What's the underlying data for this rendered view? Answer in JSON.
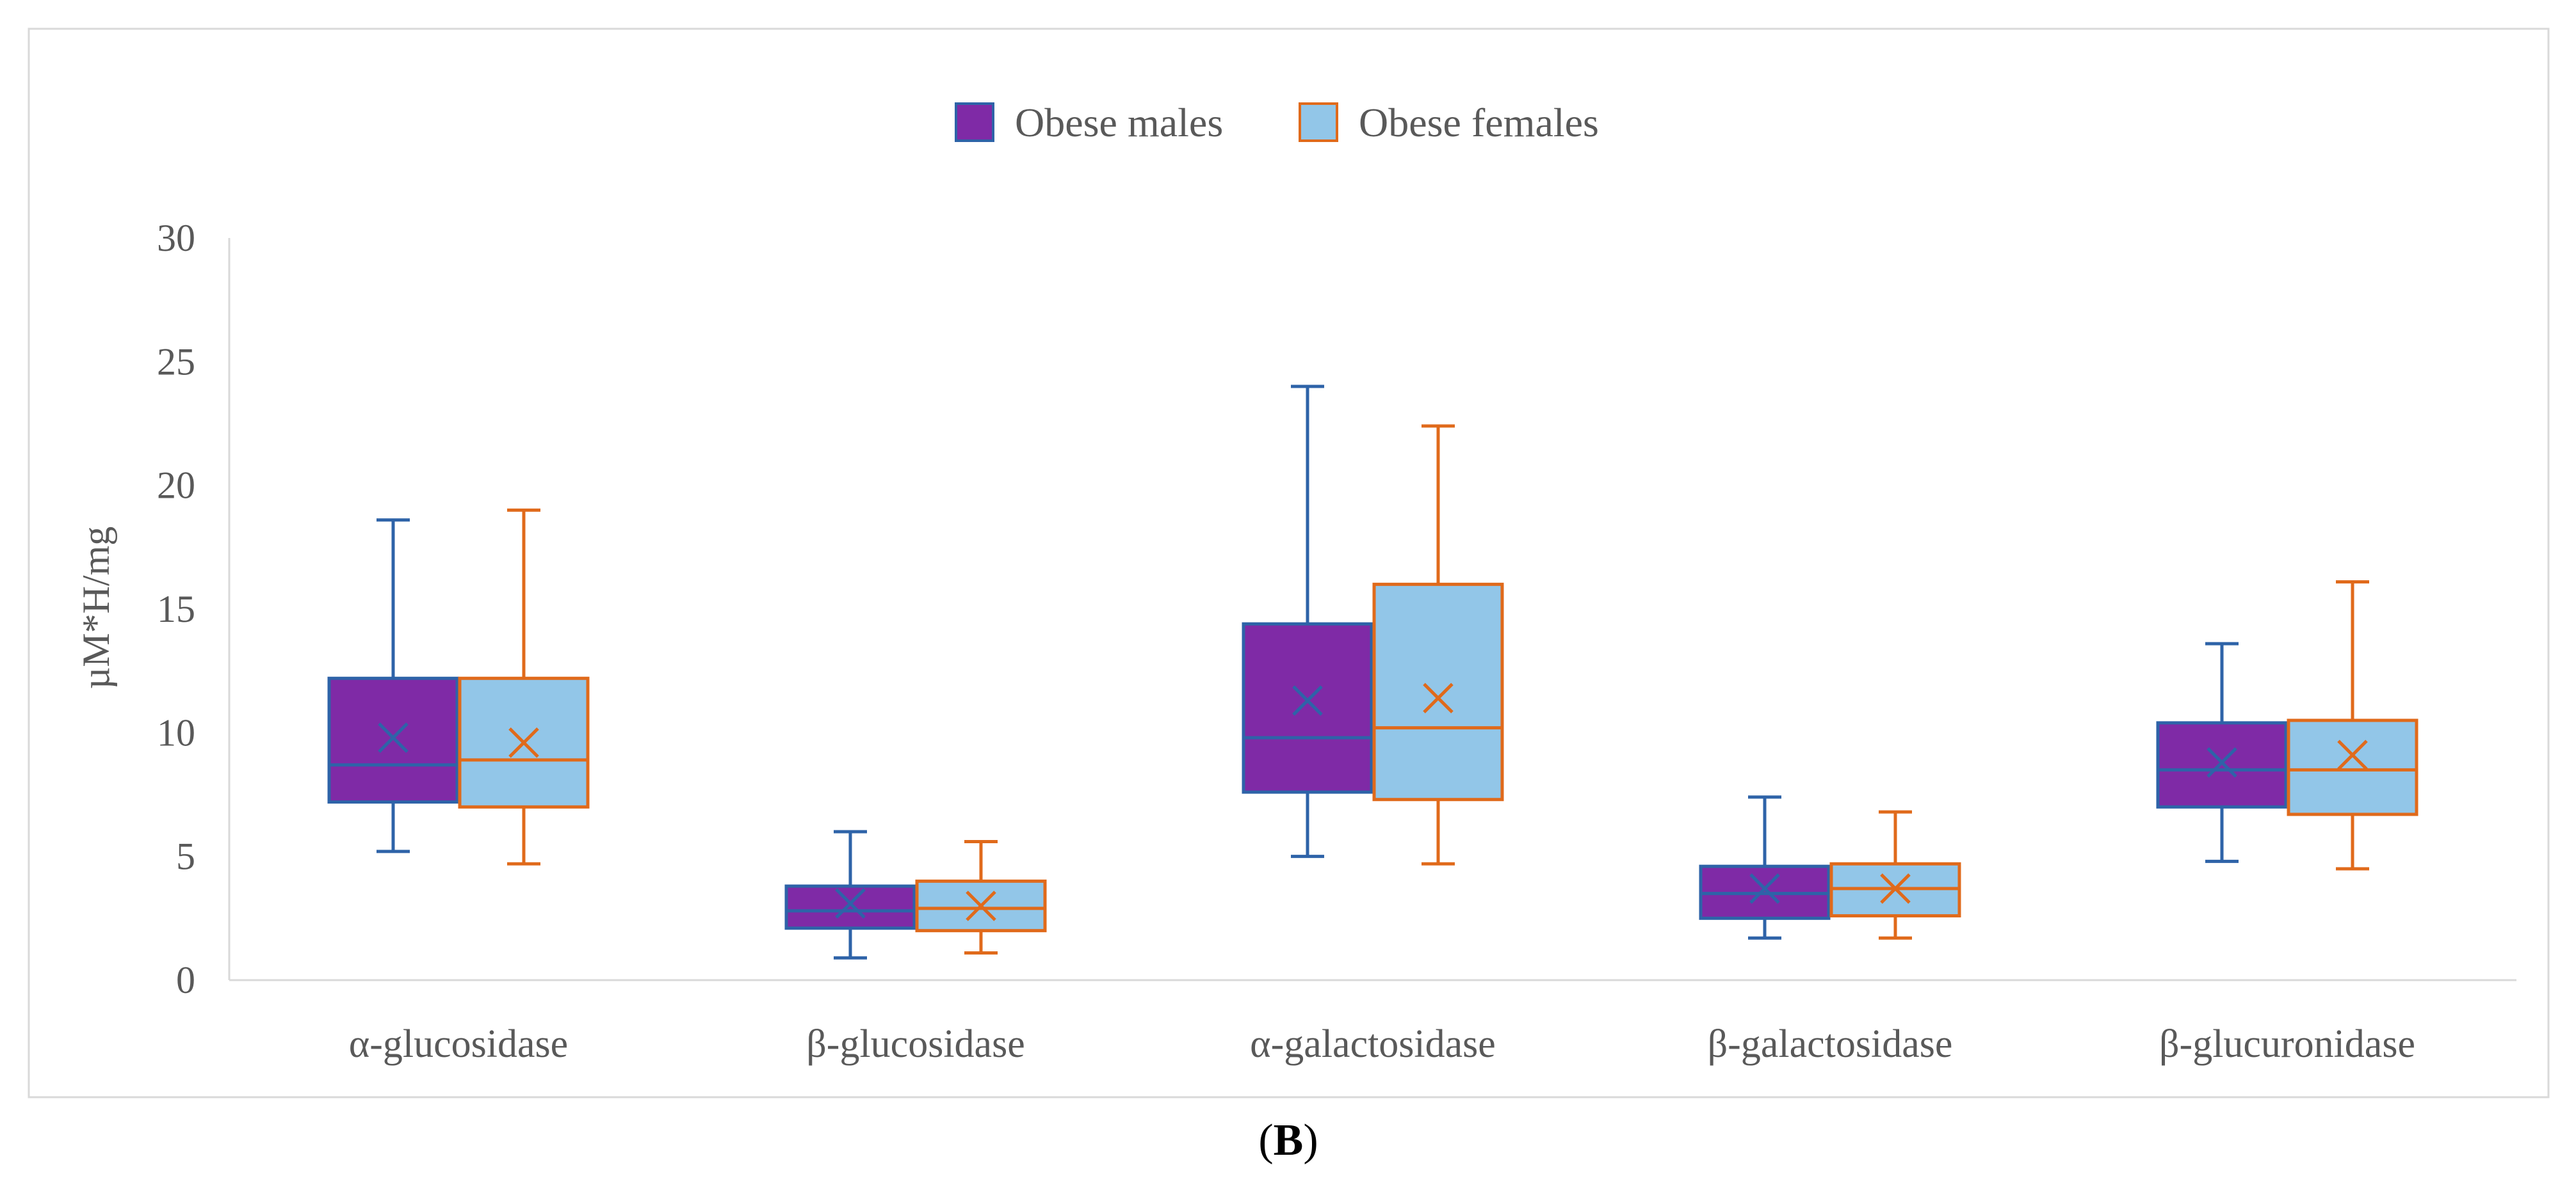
{
  "chart_data": {
    "type": "boxplot",
    "title": "",
    "xlabel": "",
    "ylabel": "µM*H/mg",
    "ylim": [
      0,
      30
    ],
    "yticks": [
      0,
      5,
      10,
      15,
      20,
      25,
      30
    ],
    "yticks_labels": [
      "0",
      "5",
      "10",
      "15",
      "20",
      "25",
      "30"
    ],
    "grid": false,
    "legend_position": "top-center",
    "categories": [
      "α-glucosidase",
      "β-glucosidase",
      "α-galactosidase",
      "β-galactosidase",
      "β-glucuronidase"
    ],
    "series": [
      {
        "name": "Obese males",
        "fill_color": "#7F2AA6",
        "stroke_color": "#2E63A8",
        "boxes": [
          {
            "min": 5.2,
            "q1": 7.2,
            "median": 8.7,
            "q3": 12.2,
            "max": 18.6,
            "mean": 9.8
          },
          {
            "min": 0.9,
            "q1": 2.1,
            "median": 2.8,
            "q3": 3.8,
            "max": 6.0,
            "mean": 3.1
          },
          {
            "min": 5.0,
            "q1": 7.6,
            "median": 9.8,
            "q3": 14.4,
            "max": 24.0,
            "mean": 11.3
          },
          {
            "min": 1.7,
            "q1": 2.5,
            "median": 3.5,
            "q3": 4.6,
            "max": 7.4,
            "mean": 3.7
          },
          {
            "min": 4.8,
            "q1": 7.0,
            "median": 8.5,
            "q3": 10.4,
            "max": 13.6,
            "mean": 8.8
          }
        ]
      },
      {
        "name": "Obese females",
        "fill_color": "#92C6E8",
        "stroke_color": "#E06A1B",
        "boxes": [
          {
            "min": 4.7,
            "q1": 7.0,
            "median": 8.9,
            "q3": 12.2,
            "max": 19.0,
            "mean": 9.6
          },
          {
            "min": 1.1,
            "q1": 2.0,
            "median": 2.9,
            "q3": 4.0,
            "max": 5.6,
            "mean": 3.0
          },
          {
            "min": 4.7,
            "q1": 7.3,
            "median": 10.2,
            "q3": 16.0,
            "max": 22.4,
            "mean": 11.4
          },
          {
            "min": 1.7,
            "q1": 2.6,
            "median": 3.7,
            "q3": 4.7,
            "max": 6.8,
            "mean": 3.7
          },
          {
            "min": 4.5,
            "q1": 6.7,
            "median": 8.5,
            "q3": 10.5,
            "max": 16.1,
            "mean": 9.1
          }
        ]
      }
    ]
  },
  "caption": {
    "open": "(",
    "letter": "B",
    "close": ")"
  }
}
